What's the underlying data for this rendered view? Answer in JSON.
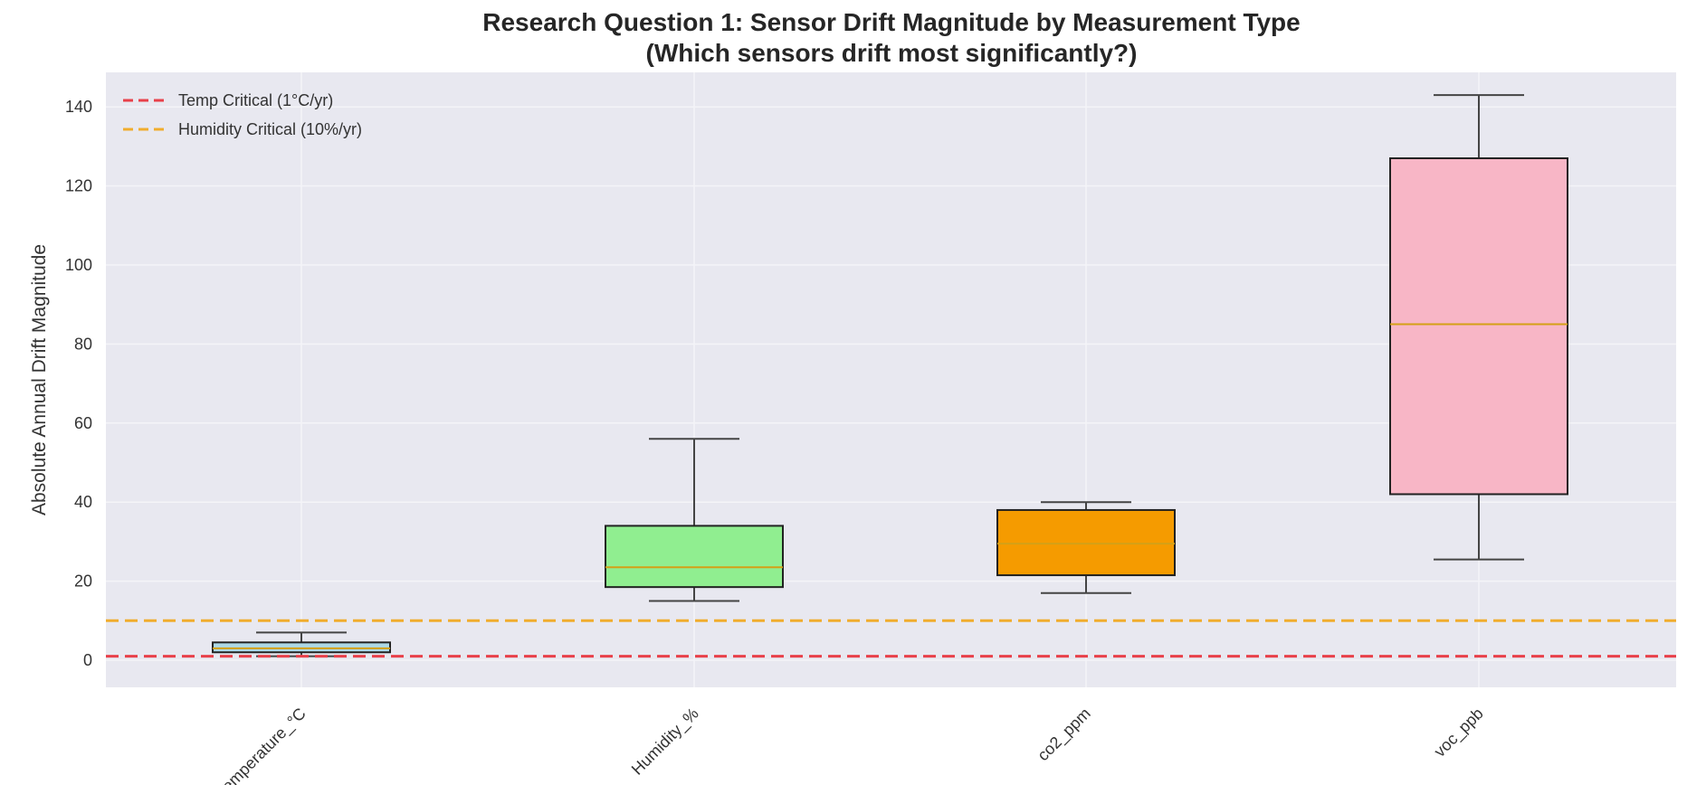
{
  "chart_data": {
    "type": "box",
    "title": "Research Question 1: Sensor Drift Magnitude by Measurement Type",
    "subtitle": "(Which sensors drift most significantly?)",
    "ylabel": "Absolute Annual Drift Magnitude",
    "xlabel": "",
    "ylim": [
      -6,
      150
    ],
    "yticks": [
      0,
      20,
      40,
      60,
      80,
      100,
      120,
      140
    ],
    "grid": true,
    "legend_position": "top-left",
    "categories": [
      "temperature_°C",
      "Humidity_%",
      "co2_ppm",
      "voc_ppb"
    ],
    "boxes": [
      {
        "category": "temperature_°C",
        "whisker_low": 1,
        "q1": 2,
        "median": 3,
        "q3": 4.5,
        "whisker_high": 7,
        "color": "#add8e6"
      },
      {
        "category": "Humidity_%",
        "whisker_low": 15,
        "q1": 18.5,
        "median": 23.5,
        "q3": 34,
        "whisker_high": 56,
        "color": "#90ee90"
      },
      {
        "category": "co2_ppm",
        "whisker_low": 17,
        "q1": 21.5,
        "median": 29.5,
        "q3": 38,
        "whisker_high": 40,
        "color": "#f59b00"
      },
      {
        "category": "voc_ppb",
        "whisker_low": 25.5,
        "q1": 42,
        "median": 85,
        "q3": 127,
        "whisker_high": 143,
        "color": "#f8b6c6"
      }
    ],
    "reference_lines": [
      {
        "label": "Temp Critical (1°C/yr)",
        "value": 1,
        "color": "#e8404a",
        "style": "dashed"
      },
      {
        "label": "Humidity Critical (10%/yr)",
        "value": 10,
        "color": "#f0ad2e",
        "style": "dashed"
      }
    ],
    "colors": {
      "plot_background": "#e8e8f0",
      "grid": "#f4f4f8",
      "median": "#d4a017",
      "box_edge": "#222222",
      "whisker": "#444444"
    }
  }
}
